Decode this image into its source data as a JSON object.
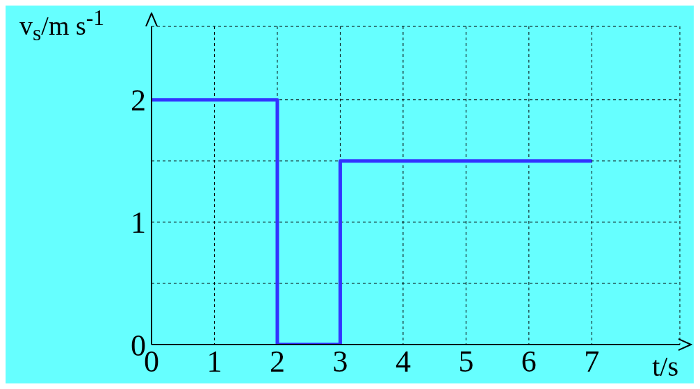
{
  "chart_data": {
    "type": "step",
    "xlabel": "t/s",
    "ylabel": "v$_{s}$/m s$^{-1}$",
    "x": [
      0,
      2,
      3,
      7
    ],
    "series": [
      {
        "color": "#3333ff",
        "values": [
          2,
          0,
          1.5,
          1.5
        ]
      }
    ],
    "xlim": [
      0,
      8.4
    ],
    "xticks": [
      0,
      1,
      2,
      3,
      4,
      5,
      6,
      7
    ],
    "ylim": [
      0,
      2.6
    ],
    "yticks": [
      0,
      {
        "value": 0.5,
        "label": null
      },
      1,
      {
        "value": 1.5,
        "label": null
      },
      2
    ],
    "grid": true,
    "legend": false,
    "marker": "none",
    "line_style": "solid"
  }
}
